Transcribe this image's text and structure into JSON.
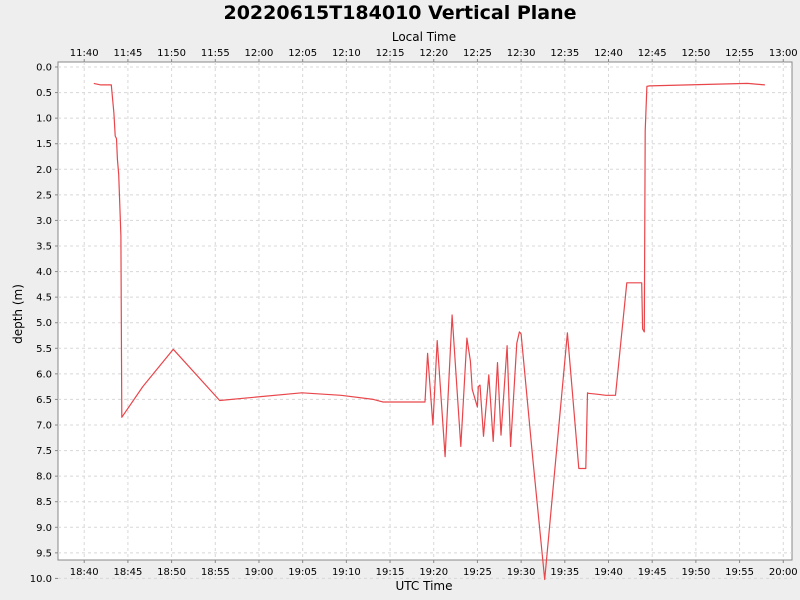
{
  "chart_data": {
    "type": "line",
    "title": "20220615T184010 Vertical Plane",
    "xlabel": "UTC Time",
    "x2label": "Local Time",
    "ylabel": "depth (m)",
    "y_inverted": true,
    "ylim": [
      0.0,
      10.5
    ],
    "xlim": [
      "18:37",
      "20:01"
    ],
    "x_ticks": [
      "18:40",
      "18:45",
      "18:50",
      "18:55",
      "19:00",
      "19:05",
      "19:10",
      "19:15",
      "19:20",
      "19:25",
      "19:30",
      "19:35",
      "19:40",
      "19:45",
      "19:50",
      "19:55",
      "20:00"
    ],
    "x2_ticks": [
      "11:40",
      "11:45",
      "11:50",
      "11:55",
      "12:00",
      "12:05",
      "12:10",
      "12:15",
      "12:20",
      "12:25",
      "12:30",
      "12:35",
      "12:40",
      "12:45",
      "12:50",
      "12:55",
      "13:00"
    ],
    "y_ticks": [
      "0.0",
      "0.5",
      "1.0",
      "1.5",
      "2.0",
      "2.5",
      "3.0",
      "3.5",
      "4.0",
      "4.5",
      "5.0",
      "5.5",
      "6.0",
      "6.5",
      "7.0",
      "7.5",
      "8.0",
      "8.5",
      "9.0",
      "9.5",
      "10.0"
    ],
    "grid": true,
    "series": [
      {
        "color": "#e8464b",
        "x": [
          "18:41:06",
          "18:41:54",
          "18:42:30",
          "18:43:06",
          "18:43:24",
          "18:43:33",
          "18:43:42",
          "18:43:48",
          "18:43:57",
          "18:44:12",
          "18:44:18",
          "18:46:42",
          "18:50:12",
          "18:55:30",
          "19:04:54",
          "19:09:24",
          "19:13:06",
          "19:14:12",
          "19:19:00",
          "19:19:18",
          "19:19:54",
          "19:20:24",
          "19:21:18",
          "19:22:06",
          "19:23:06",
          "19:23:48",
          "19:24:12",
          "19:24:24",
          "19:25:00",
          "19:25:06",
          "19:25:18",
          "19:25:42",
          "19:26:18",
          "19:26:48",
          "19:27:18",
          "19:27:42",
          "19:28:24",
          "19:28:48",
          "19:29:30",
          "19:29:48",
          "19:30:00",
          "19:31:18",
          "19:32:42",
          "19:35:18",
          "19:36:36",
          "19:37:00",
          "19:37:24",
          "19:37:36",
          "19:37:42",
          "19:38:48",
          "19:39:42",
          "19:40:48",
          "19:42:06",
          "19:42:36",
          "19:43:48",
          "19:43:54",
          "19:44:06",
          "19:44:12",
          "19:44:24",
          "19:44:42",
          "19:55:54",
          "19:57:54"
        ],
        "y": [
          0.32,
          0.35,
          0.35,
          0.35,
          0.9,
          1.35,
          1.4,
          1.8,
          2.1,
          3.3,
          6.85,
          6.25,
          5.52,
          6.52,
          6.37,
          6.42,
          6.5,
          6.55,
          6.55,
          5.6,
          7.0,
          5.35,
          7.62,
          4.85,
          7.42,
          5.3,
          5.75,
          6.3,
          6.65,
          6.25,
          6.22,
          7.22,
          6.02,
          7.32,
          5.78,
          7.2,
          5.45,
          7.42,
          5.4,
          5.18,
          5.22,
          7.6,
          10.02,
          5.2,
          7.85,
          7.85,
          7.85,
          6.37,
          6.38,
          6.4,
          6.42,
          6.42,
          4.22,
          4.22,
          4.22,
          5.12,
          5.18,
          1.25,
          0.38,
          0.37,
          0.32,
          0.35
        ]
      }
    ]
  }
}
